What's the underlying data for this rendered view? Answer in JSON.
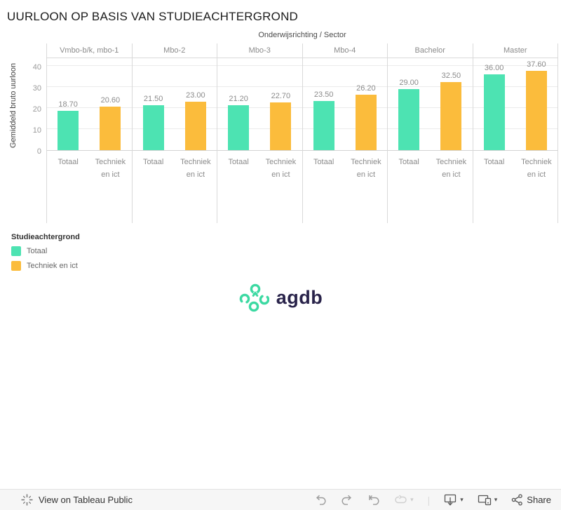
{
  "title": "UURLOON OP BASIS VAN STUDIEACHTERGROND",
  "chart_data": {
    "type": "bar",
    "title": "UURLOON OP BASIS VAN STUDIEACHTERGROND",
    "top_axis_title": "Onderwijsrichting / Sector",
    "ylabel": "Gemiddeld bruto uurloon",
    "yticks": [
      0,
      10,
      20,
      30,
      40
    ],
    "ylim": [
      0,
      44
    ],
    "grid": "horizontal",
    "legend_position": "bottom-left",
    "categories": [
      "Vmbo-b/k, mbo-1",
      "Mbo-2",
      "Mbo-3",
      "Mbo-4",
      "Bachelor",
      "Master"
    ],
    "x_subcategories": [
      "Totaal",
      "Techniek en ict"
    ],
    "series": [
      {
        "name": "Totaal",
        "color": "#4de3b2",
        "values": [
          18.7,
          21.5,
          21.2,
          23.5,
          29.0,
          36.0
        ]
      },
      {
        "name": "Techniek en ict",
        "color": "#fbbc3c",
        "values": [
          20.6,
          23.0,
          22.7,
          26.2,
          32.5,
          37.6
        ]
      }
    ]
  },
  "legend": {
    "title": "Studieachtergrond",
    "items": [
      {
        "label": "Totaal",
        "color": "#4de3b2"
      },
      {
        "label": "Techniek en ict",
        "color": "#fbbc3c"
      }
    ]
  },
  "logo": {
    "text": "agdb",
    "accent_color": "#3cd9a2",
    "text_color": "#29234a"
  },
  "toolbar": {
    "view_label": "View on Tableau Public",
    "share_label": "Share"
  }
}
